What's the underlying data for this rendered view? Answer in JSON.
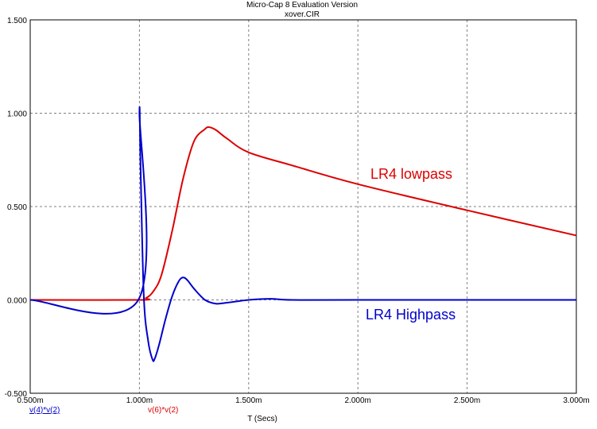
{
  "chart_data": {
    "type": "line",
    "title": "Micro-Cap 8 Evaluation Version",
    "subtitle": "xover.CIR",
    "xlabel": "T (Secs)",
    "xlim": [
      0.0005,
      0.003
    ],
    "ylim": [
      -0.5,
      1.5
    ],
    "x_ticks": [
      "0.500m",
      "1.000m",
      "1.500m",
      "2.000m",
      "2.500m",
      "3.000m"
    ],
    "y_ticks": [
      "1.500",
      "1.000",
      "0.500",
      "0.000",
      "-0.500"
    ],
    "grid": true,
    "legend_expressions": [
      {
        "text": "v(4)*v(2)",
        "color": "#0000CC"
      },
      {
        "text": "v(6)*v(2)",
        "color": "#DD0000"
      }
    ],
    "series": [
      {
        "name": "LR4 lowpass",
        "color": "#DD0000",
        "x": [
          0.0005,
          0.001,
          0.00103,
          0.00106,
          0.0011,
          0.00115,
          0.0012,
          0.00125,
          0.0013,
          0.00132,
          0.00135,
          0.0014,
          0.0015,
          0.0017,
          0.002,
          0.0025,
          0.003
        ],
        "y": [
          0.0,
          0.0,
          0.01,
          0.04,
          0.13,
          0.37,
          0.65,
          0.85,
          0.915,
          0.925,
          0.91,
          0.865,
          0.79,
          0.72,
          0.62,
          0.48,
          0.345
        ]
      },
      {
        "name": "LR4 Highpass",
        "color": "#0000CC",
        "x": [
          0.0005,
          0.000995,
          0.001,
          0.001005,
          0.00102,
          0.00104,
          0.00106,
          0.00107,
          0.00109,
          0.00112,
          0.00115,
          0.00118,
          0.0012,
          0.00122,
          0.00125,
          0.0013,
          0.00135,
          0.0014,
          0.0015,
          0.0016,
          0.0017,
          0.002,
          0.003
        ],
        "y": [
          0.0,
          0.0,
          1.0,
          0.72,
          0.02,
          -0.22,
          -0.32,
          -0.315,
          -0.24,
          -0.1,
          0.02,
          0.1,
          0.12,
          0.105,
          0.06,
          0.0,
          -0.02,
          -0.015,
          0.0,
          0.006,
          0.0,
          0.0,
          0.0
        ]
      }
    ],
    "annotations": [
      {
        "text": "LR4 lowpass",
        "color": "#DD0000"
      },
      {
        "text": "LR4 Highpass",
        "color": "#0000CC"
      }
    ]
  }
}
